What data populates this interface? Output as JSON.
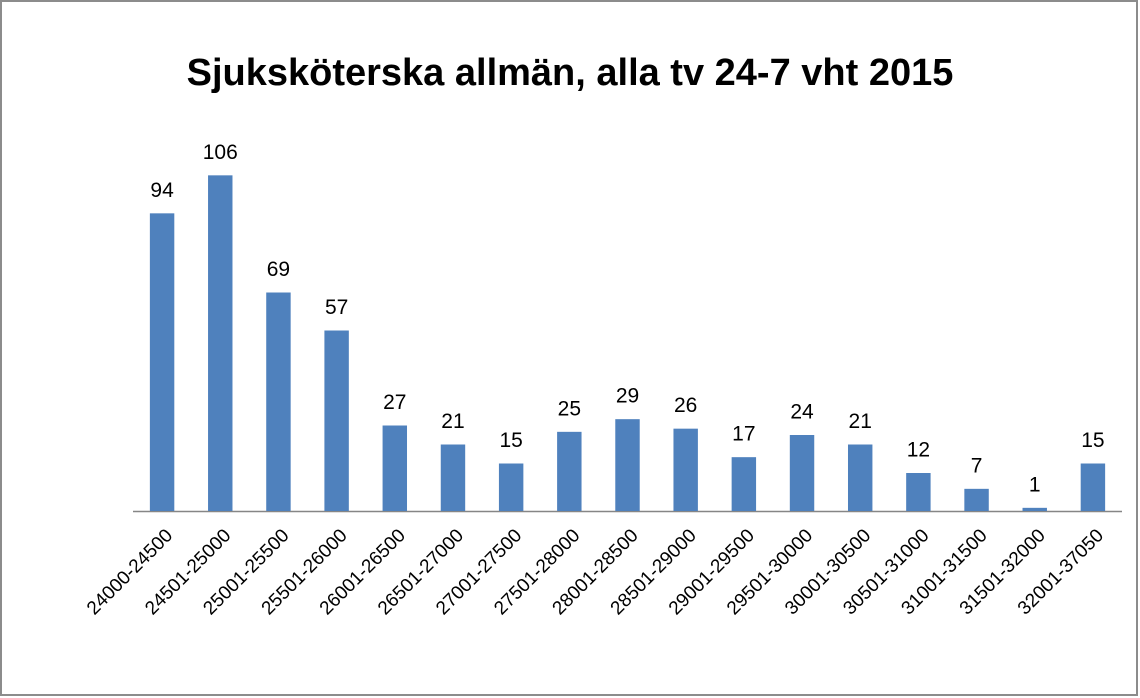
{
  "chart_data": {
    "type": "bar",
    "title": "Sjuksköterska allmän, alla tv 24-7 vht 2015",
    "categories": [
      "24000-24500",
      "24501-25000",
      "25001-25500",
      "25501-26000",
      "26001-26500",
      "26501-27000",
      "27001-27500",
      "27501-28000",
      "28001-28500",
      "28501-29000",
      "29001-29500",
      "29501-30000",
      "30001-30500",
      "30501-31000",
      "31001-31500",
      "31501-32000",
      "32001-37050"
    ],
    "values": [
      94,
      106,
      69,
      57,
      27,
      21,
      15,
      25,
      29,
      26,
      17,
      24,
      21,
      12,
      7,
      1,
      15
    ],
    "color": "#4f81bd",
    "ylim": [
      0,
      120
    ],
    "data_labels": true
  }
}
